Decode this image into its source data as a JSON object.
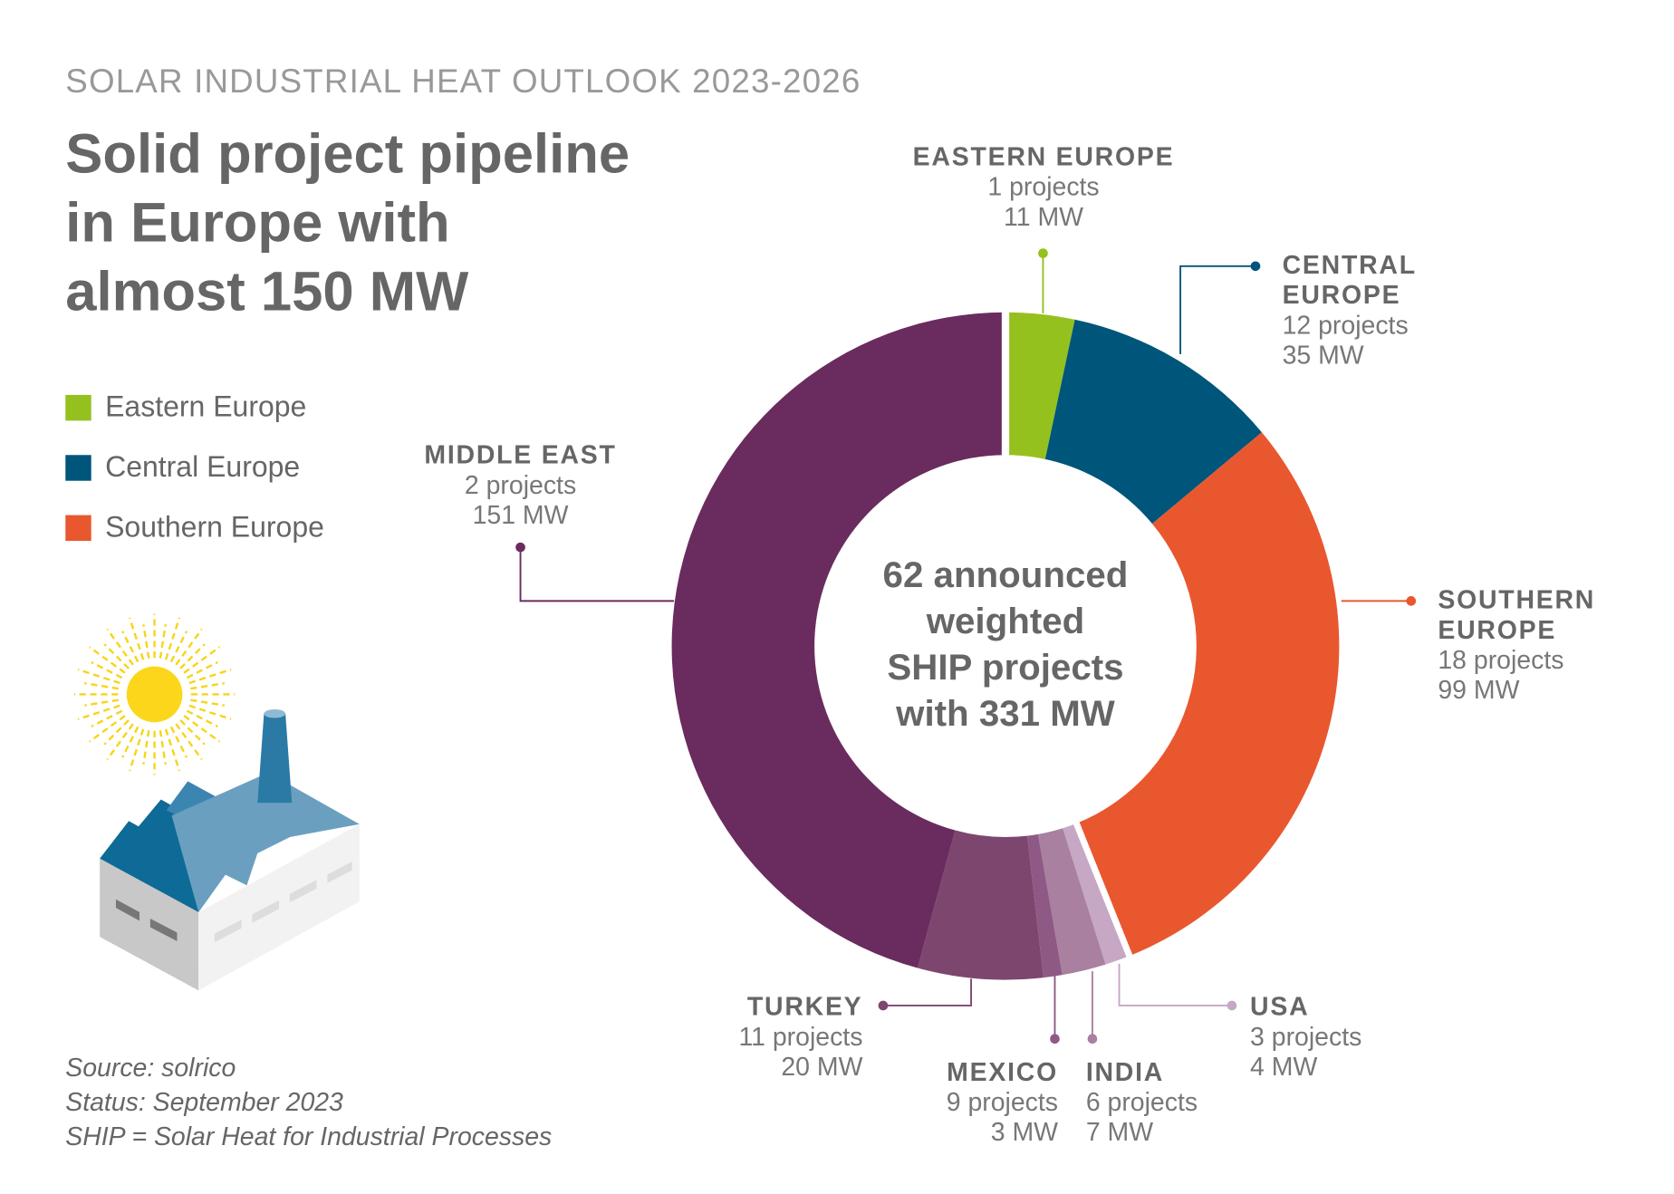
{
  "kicker": "SOLAR INDUSTRIAL HEAT OUTLOOK 2023-2026",
  "title": [
    "Solid project pipeline",
    "in Europe with",
    "almost 150 MW"
  ],
  "legend": [
    {
      "label": "Eastern Europe",
      "color": "#95c11f"
    },
    {
      "label": "Central Europe",
      "color": "#00557a"
    },
    {
      "label": "Southern Europe",
      "color": "#e9572f"
    }
  ],
  "center_text": [
    "62 announced",
    "weighted",
    "SHIP projects",
    "with 331 MW"
  ],
  "source": [
    "Source: solrico",
    "Status: September 2023",
    "SHIP = Solar Heat for Industrial Processes"
  ],
  "chart_data": {
    "type": "pie",
    "variant": "donut",
    "categories": [
      "Eastern Europe",
      "Central Europe",
      "Southern Europe",
      "USA",
      "India",
      "Mexico",
      "Turkey",
      "Middle East"
    ],
    "values_mw": [
      11,
      35,
      99,
      4,
      7,
      3,
      20,
      151
    ],
    "projects": [
      1,
      12,
      18,
      3,
      6,
      9,
      11,
      2
    ],
    "unit": "MW",
    "labels": [
      {
        "name": "EASTERN EUROPE",
        "projects": "1 projects",
        "mw": "11 MW"
      },
      {
        "name": "CENTRAL EUROPE",
        "projects": "12 projects",
        "mw": "35 MW"
      },
      {
        "name": "SOUTHERN EUROPE",
        "projects": "18 projects",
        "mw": "99 MW"
      },
      {
        "name": "USA",
        "projects": "3 projects",
        "mw": "4 MW"
      },
      {
        "name": "INDIA",
        "projects": "6 projects",
        "mw": "7 MW"
      },
      {
        "name": "MEXICO",
        "projects": "9 projects",
        "mw": "3 MW"
      },
      {
        "name": "TURKEY",
        "projects": "11 projects",
        "mw": "20 MW"
      },
      {
        "name": "MIDDLE EAST",
        "projects": "2 projects",
        "mw": "151 MW"
      }
    ],
    "colors": [
      "#95c11f",
      "#00557a",
      "#e9572f",
      "#c6a7c4",
      "#a9809f",
      "#8e5a85",
      "#7d466f",
      "#6a2b5e"
    ]
  }
}
